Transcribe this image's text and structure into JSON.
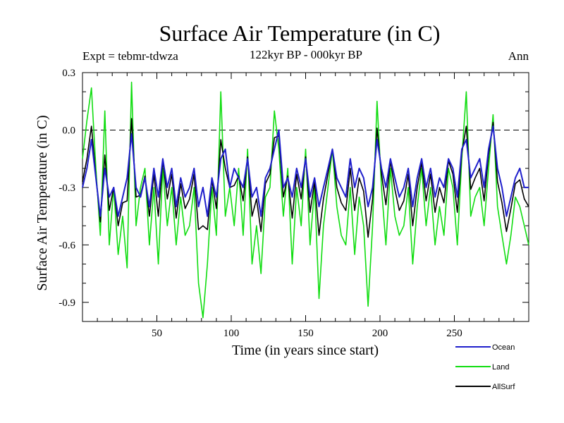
{
  "chart_data": {
    "type": "line",
    "title": "Surface Air Temperature (in C)",
    "subtitle": "122kyr BP - 000kyr BP",
    "experiment_label": "Expt = tebmr-tdwza",
    "season_label": "Ann",
    "xlabel": "Time (in years since start)",
    "ylabel": "Surface Air Temperature (in C)",
    "xlim": [
      0,
      300
    ],
    "ylim": [
      -1.0,
      0.3
    ],
    "xticks": [
      50,
      100,
      150,
      200,
      250
    ],
    "xtick_labels": [
      "50",
      "100",
      "150",
      "200",
      "250"
    ],
    "yticks": [
      0.3,
      0.0,
      -0.3,
      -0.6,
      -0.9
    ],
    "ytick_labels": [
      "0.3",
      "0.0",
      "-0.3",
      "-0.6",
      "-0.9"
    ],
    "reference_line": 0.0,
    "colors": {
      "Ocean": "#1f1fcc",
      "Land": "#11dd11",
      "AllSurf": "#000000"
    },
    "series": [
      {
        "name": "Ocean",
        "x": [
          0,
          3,
          6,
          9,
          12,
          15,
          18,
          21,
          24,
          27,
          30,
          33,
          36,
          39,
          42,
          45,
          48,
          51,
          54,
          57,
          60,
          63,
          66,
          69,
          72,
          75,
          78,
          81,
          84,
          87,
          90,
          93,
          96,
          99,
          102,
          105,
          108,
          111,
          114,
          117,
          120,
          123,
          126,
          129,
          132,
          135,
          138,
          141,
          144,
          147,
          150,
          153,
          156,
          159,
          162,
          165,
          168,
          171,
          174,
          177,
          180,
          183,
          186,
          189,
          192,
          195,
          198,
          201,
          204,
          207,
          210,
          213,
          216,
          219,
          222,
          225,
          228,
          231,
          234,
          237,
          240,
          243,
          246,
          249,
          252,
          255,
          258,
          261,
          264,
          267,
          270,
          273,
          276,
          279,
          282,
          285,
          288,
          291,
          294,
          297,
          300
        ],
        "values": [
          -0.3,
          -0.2,
          -0.05,
          -0.25,
          -0.45,
          -0.2,
          -0.35,
          -0.3,
          -0.45,
          -0.35,
          -0.25,
          -0.02,
          -0.3,
          -0.35,
          -0.25,
          -0.4,
          -0.2,
          -0.35,
          -0.15,
          -0.3,
          -0.2,
          -0.4,
          -0.25,
          -0.35,
          -0.3,
          -0.2,
          -0.4,
          -0.3,
          -0.45,
          -0.25,
          -0.35,
          -0.15,
          -0.1,
          -0.3,
          -0.2,
          -0.25,
          -0.3,
          -0.15,
          -0.35,
          -0.3,
          -0.45,
          -0.25,
          -0.2,
          -0.1,
          0.0,
          -0.3,
          -0.25,
          -0.35,
          -0.2,
          -0.3,
          -0.15,
          -0.35,
          -0.25,
          -0.4,
          -0.3,
          -0.2,
          -0.1,
          -0.25,
          -0.3,
          -0.35,
          -0.15,
          -0.3,
          -0.2,
          -0.25,
          -0.4,
          -0.3,
          -0.05,
          -0.2,
          -0.3,
          -0.15,
          -0.25,
          -0.35,
          -0.3,
          -0.2,
          -0.4,
          -0.25,
          -0.15,
          -0.3,
          -0.2,
          -0.35,
          -0.25,
          -0.3,
          -0.15,
          -0.2,
          -0.35,
          -0.1,
          -0.05,
          -0.25,
          -0.2,
          -0.15,
          -0.3,
          -0.1,
          0.02,
          -0.2,
          -0.3,
          -0.45,
          -0.35,
          -0.25,
          -0.2,
          -0.3,
          -0.3
        ]
      },
      {
        "name": "Land",
        "x": [
          0,
          3,
          6,
          9,
          12,
          15,
          18,
          21,
          24,
          27,
          30,
          33,
          36,
          39,
          42,
          45,
          48,
          51,
          54,
          57,
          60,
          63,
          66,
          69,
          72,
          75,
          78,
          81,
          84,
          87,
          90,
          93,
          96,
          99,
          102,
          105,
          108,
          111,
          114,
          117,
          120,
          123,
          126,
          129,
          132,
          135,
          138,
          141,
          144,
          147,
          150,
          153,
          156,
          159,
          162,
          165,
          168,
          171,
          174,
          177,
          180,
          183,
          186,
          189,
          192,
          195,
          198,
          201,
          204,
          207,
          210,
          213,
          216,
          219,
          222,
          225,
          228,
          231,
          234,
          237,
          240,
          243,
          246,
          249,
          252,
          255,
          258,
          261,
          264,
          267,
          270,
          273,
          276,
          279,
          282,
          285,
          288,
          291,
          294,
          297,
          300
        ],
        "values": [
          -0.15,
          0.05,
          0.22,
          -0.2,
          -0.55,
          0.1,
          -0.6,
          -0.3,
          -0.65,
          -0.45,
          -0.72,
          0.25,
          -0.5,
          -0.3,
          -0.2,
          -0.6,
          -0.3,
          -0.7,
          -0.2,
          -0.5,
          -0.3,
          -0.6,
          -0.35,
          -0.55,
          -0.5,
          -0.3,
          -0.8,
          -0.98,
          -0.7,
          -0.3,
          -0.55,
          0.2,
          -0.45,
          -0.3,
          -0.5,
          -0.2,
          -0.55,
          -0.1,
          -0.7,
          -0.5,
          -0.75,
          -0.35,
          -0.3,
          0.1,
          -0.1,
          -0.45,
          -0.2,
          -0.7,
          -0.3,
          -0.5,
          -0.1,
          -0.6,
          -0.3,
          -0.88,
          -0.5,
          -0.3,
          -0.1,
          -0.4,
          -0.55,
          -0.6,
          -0.3,
          -0.65,
          -0.35,
          -0.5,
          -0.92,
          -0.5,
          0.15,
          -0.3,
          -0.6,
          -0.2,
          -0.45,
          -0.55,
          -0.5,
          -0.3,
          -0.7,
          -0.4,
          -0.2,
          -0.5,
          -0.3,
          -0.6,
          -0.4,
          -0.55,
          -0.2,
          -0.3,
          -0.6,
          -0.15,
          0.2,
          -0.45,
          -0.35,
          -0.3,
          -0.5,
          -0.2,
          0.08,
          -0.4,
          -0.55,
          -0.7,
          -0.55,
          -0.35,
          -0.4,
          -0.5,
          -0.6
        ]
      },
      {
        "name": "AllSurf",
        "x": [
          0,
          3,
          6,
          9,
          12,
          15,
          18,
          21,
          24,
          27,
          30,
          33,
          36,
          39,
          42,
          45,
          48,
          51,
          54,
          57,
          60,
          63,
          66,
          69,
          72,
          75,
          78,
          81,
          84,
          87,
          90,
          93,
          96,
          99,
          102,
          105,
          108,
          111,
          114,
          117,
          120,
          123,
          126,
          129,
          132,
          135,
          138,
          141,
          144,
          147,
          150,
          153,
          156,
          159,
          162,
          165,
          168,
          171,
          174,
          177,
          180,
          183,
          186,
          189,
          192,
          195,
          198,
          201,
          204,
          207,
          210,
          213,
          216,
          219,
          222,
          225,
          228,
          231,
          234,
          237,
          240,
          243,
          246,
          249,
          252,
          255,
          258,
          261,
          264,
          267,
          270,
          273,
          276,
          279,
          282,
          285,
          288,
          291,
          294,
          297,
          300
        ],
        "values": [
          -0.27,
          -0.15,
          0.02,
          -0.24,
          -0.48,
          -0.13,
          -0.42,
          -0.3,
          -0.5,
          -0.38,
          -0.37,
          0.06,
          -0.35,
          -0.34,
          -0.24,
          -0.45,
          -0.23,
          -0.45,
          -0.16,
          -0.36,
          -0.23,
          -0.46,
          -0.28,
          -0.41,
          -0.36,
          -0.23,
          -0.52,
          -0.5,
          -0.52,
          -0.26,
          -0.41,
          -0.05,
          -0.2,
          -0.3,
          -0.29,
          -0.24,
          -0.37,
          -0.14,
          -0.45,
          -0.36,
          -0.53,
          -0.28,
          -0.23,
          -0.04,
          -0.03,
          -0.35,
          -0.24,
          -0.46,
          -0.23,
          -0.36,
          -0.14,
          -0.43,
          -0.27,
          -0.55,
          -0.36,
          -0.23,
          -0.1,
          -0.3,
          -0.38,
          -0.42,
          -0.2,
          -0.42,
          -0.25,
          -0.32,
          -0.56,
          -0.36,
          0.01,
          -0.23,
          -0.39,
          -0.16,
          -0.31,
          -0.42,
          -0.37,
          -0.23,
          -0.5,
          -0.3,
          -0.17,
          -0.37,
          -0.23,
          -0.43,
          -0.3,
          -0.38,
          -0.16,
          -0.23,
          -0.43,
          -0.12,
          0.02,
          -0.31,
          -0.25,
          -0.2,
          -0.37,
          -0.13,
          0.04,
          -0.27,
          -0.38,
          -0.53,
          -0.41,
          -0.28,
          -0.26,
          -0.36,
          -0.4
        ]
      }
    ],
    "legend": [
      "Ocean",
      "Land",
      "AllSurf"
    ],
    "legend_position": "bottom-right"
  }
}
